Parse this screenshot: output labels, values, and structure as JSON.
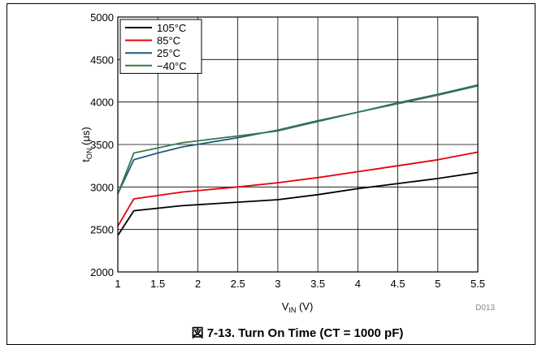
{
  "chart_data": {
    "type": "line",
    "xlabel": {
      "main": "V",
      "sub": "IN",
      "unit": " (V)"
    },
    "ylabel": {
      "main": "t",
      "sub": "ON",
      "unit": " (μs)"
    },
    "xlim": [
      1,
      5.5
    ],
    "ylim": [
      2000,
      5000
    ],
    "x_ticks": [
      1,
      1.5,
      2,
      2.5,
      3,
      3.5,
      4,
      4.5,
      5,
      5.5
    ],
    "x_tick_labels": [
      "1",
      "1.5",
      "2",
      "2.5",
      "3",
      "3.5",
      "4",
      "4.5",
      "5",
      "5.5"
    ],
    "y_ticks": [
      2000,
      2500,
      3000,
      3500,
      4000,
      4500,
      5000
    ],
    "y_tick_labels": [
      "2000",
      "2500",
      "3000",
      "3500",
      "4000",
      "4500",
      "5000"
    ],
    "grid": true,
    "legend_position": "top-left",
    "series": [
      {
        "name": "105°C",
        "color": "#000000",
        "points": [
          [
            1.0,
            2430
          ],
          [
            1.2,
            2720
          ],
          [
            1.8,
            2780
          ],
          [
            3.0,
            2850
          ],
          [
            3.5,
            2910
          ],
          [
            4.0,
            2980
          ],
          [
            4.5,
            3040
          ],
          [
            5.0,
            3100
          ],
          [
            5.5,
            3170
          ]
        ]
      },
      {
        "name": "85°C",
        "color": "#e8000b",
        "points": [
          [
            1.0,
            2540
          ],
          [
            1.2,
            2860
          ],
          [
            1.8,
            2940
          ],
          [
            2.5,
            3000
          ],
          [
            3.0,
            3050
          ],
          [
            3.5,
            3110
          ],
          [
            4.0,
            3180
          ],
          [
            4.5,
            3250
          ],
          [
            5.0,
            3320
          ],
          [
            5.5,
            3410
          ]
        ]
      },
      {
        "name": "25°C",
        "color": "#1f5a7a",
        "points": [
          [
            1.0,
            2920
          ],
          [
            1.2,
            3320
          ],
          [
            1.5,
            3400
          ],
          [
            1.8,
            3470
          ],
          [
            2.5,
            3580
          ],
          [
            3.0,
            3670
          ],
          [
            3.5,
            3780
          ],
          [
            4.0,
            3880
          ],
          [
            4.5,
            3990
          ],
          [
            5.0,
            4090
          ],
          [
            5.5,
            4200
          ]
        ]
      },
      {
        "name": "−40°C",
        "color": "#3a7a4a",
        "points": [
          [
            1.0,
            2920
          ],
          [
            1.2,
            3400
          ],
          [
            1.5,
            3460
          ],
          [
            1.8,
            3520
          ],
          [
            2.5,
            3600
          ],
          [
            3.0,
            3660
          ],
          [
            3.5,
            3770
          ],
          [
            4.0,
            3880
          ],
          [
            4.5,
            3980
          ],
          [
            5.0,
            4080
          ],
          [
            5.5,
            4190
          ]
        ]
      }
    ],
    "title": "図 7-13. Turn On Time (CT = 1000 pF)",
    "code_label": "D013"
  }
}
